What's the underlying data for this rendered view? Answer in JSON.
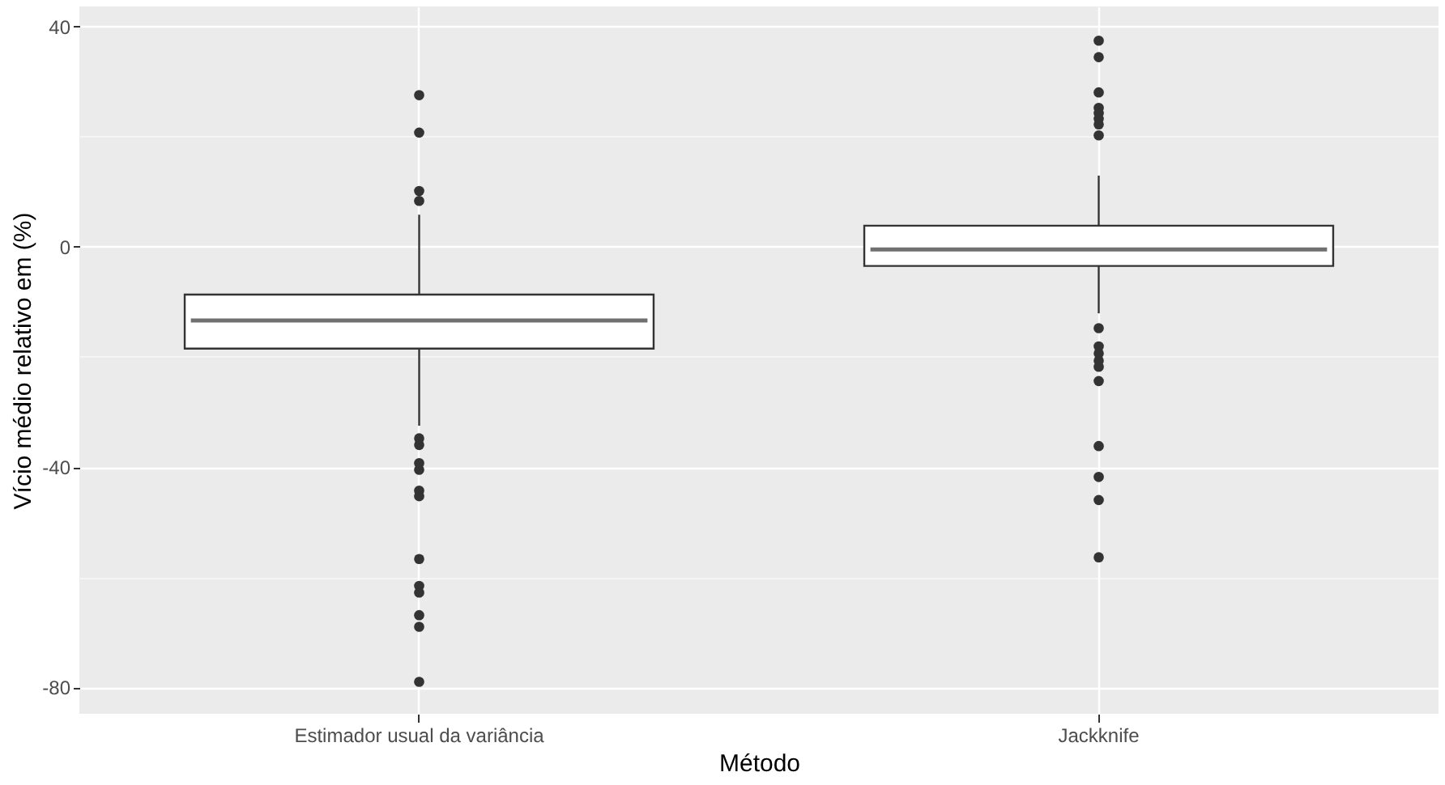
{
  "chart_data": {
    "type": "box",
    "xlabel": "Método",
    "ylabel": "Vício médio relativo em (%)",
    "categories": [
      "Estimador usual da variância",
      "Jackknife"
    ],
    "boxes": [
      {
        "low": -32.5,
        "q1": -18.5,
        "median": -13.4,
        "q3": -8.7,
        "high": 5.8,
        "outliers": [
          27.5,
          20.7,
          10.1,
          8.3,
          -34.8,
          -36.0,
          -39.3,
          -40.5,
          -44.3,
          -45.3,
          -56.7,
          -61.6,
          -62.8,
          -66.9,
          -69.0,
          -79.0
        ]
      },
      {
        "low": -12.1,
        "q1": -3.5,
        "median": -0.5,
        "q3": 3.8,
        "high": 12.9,
        "outliers": [
          37.4,
          34.4,
          28.0,
          25.2,
          24.2,
          23.2,
          22.2,
          20.2,
          -14.8,
          -18.1,
          -19.4,
          -20.7,
          -21.8,
          -24.4,
          -36.2,
          -41.8,
          -46.0,
          -56.4
        ]
      }
    ],
    "ylim": [
      -84.8,
      43.6
    ],
    "yticks": [
      -80,
      {
        "value": -60,
        "label": null
      },
      -40,
      {
        "value": -20,
        "label": null
      },
      0,
      {
        "value": 20,
        "label": null
      },
      40
    ],
    "grid": true
  }
}
